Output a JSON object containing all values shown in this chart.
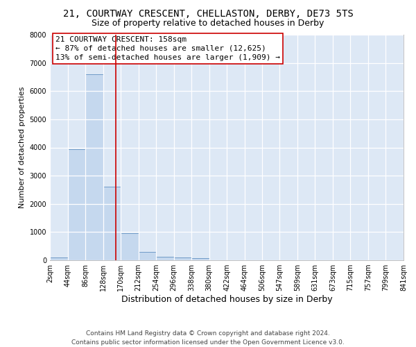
{
  "title_line1": "21, COURTWAY CRESCENT, CHELLASTON, DERBY, DE73 5TS",
  "title_line2": "Size of property relative to detached houses in Derby",
  "xlabel": "Distribution of detached houses by size in Derby",
  "ylabel": "Number of detached properties",
  "footer_line1": "Contains HM Land Registry data © Crown copyright and database right 2024.",
  "footer_line2": "Contains public sector information licensed under the Open Government Licence v3.0.",
  "bin_edges": [
    2,
    44,
    86,
    128,
    170,
    212,
    254,
    296,
    338,
    380,
    422,
    464,
    506,
    547,
    589,
    631,
    673,
    715,
    757,
    799,
    841
  ],
  "bar_heights": [
    100,
    3950,
    6600,
    2600,
    950,
    300,
    125,
    100,
    75,
    0,
    0,
    0,
    0,
    0,
    0,
    0,
    0,
    0,
    0,
    0
  ],
  "bar_color": "#c5d8ee",
  "bar_edgecolor": "#6090c0",
  "property_size": 158,
  "red_line_color": "#cc0000",
  "annotation_line1": "21 COURTWAY CRESCENT: 158sqm",
  "annotation_line2": "← 87% of detached houses are smaller (12,625)",
  "annotation_line3": "13% of semi-detached houses are larger (1,909) →",
  "annotation_box_edgecolor": "#cc0000",
  "annotation_box_facecolor": "#ffffff",
  "ylim": [
    0,
    8000
  ],
  "xlim": [
    2,
    841
  ],
  "yticks": [
    0,
    1000,
    2000,
    3000,
    4000,
    5000,
    6000,
    7000,
    8000
  ],
  "xtick_labels": [
    "2sqm",
    "44sqm",
    "86sqm",
    "128sqm",
    "170sqm",
    "212sqm",
    "254sqm",
    "296sqm",
    "338sqm",
    "380sqm",
    "422sqm",
    "464sqm",
    "506sqm",
    "547sqm",
    "589sqm",
    "631sqm",
    "673sqm",
    "715sqm",
    "757sqm",
    "799sqm",
    "841sqm"
  ],
  "background_color": "#dde8f5",
  "grid_color": "#ffffff",
  "title1_fontsize": 10,
  "title2_fontsize": 9,
  "xlabel_fontsize": 9,
  "ylabel_fontsize": 8,
  "tick_fontsize": 7,
  "annotation_fontsize": 8,
  "footer_fontsize": 6.5
}
